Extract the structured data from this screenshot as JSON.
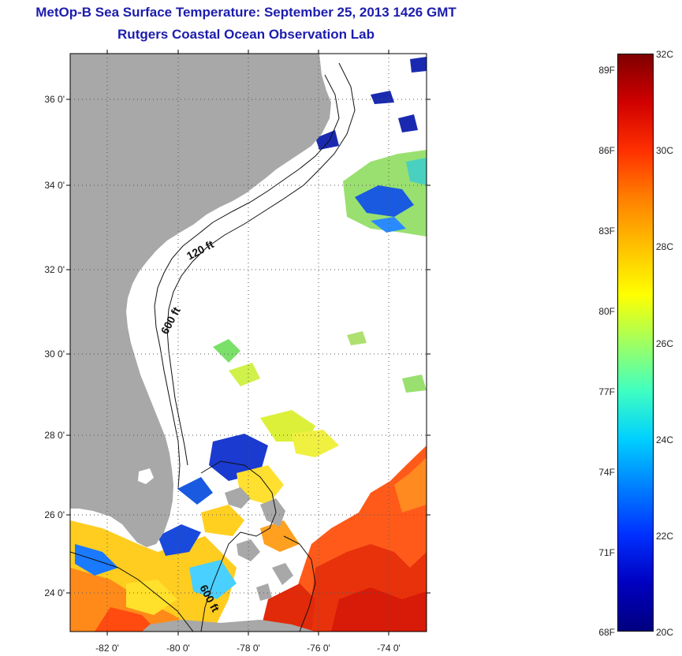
{
  "header": {
    "title": "MetOp-B Sea Surface Temperature:  September 25, 2013 1426 GMT",
    "subtitle": "Rutgers Coastal Ocean Observation Lab"
  },
  "map": {
    "latitude_labels": [
      "36 0'",
      "34 0'",
      "32 0'",
      "30 0'",
      "28 0'",
      "26 0'",
      "24 0'"
    ],
    "longitude_labels": [
      "-82 0'",
      "-80 0'",
      "-78 0'",
      "-76 0'",
      "-74 0'"
    ],
    "contour_labels": [
      "120 ft",
      "600 ft",
      "600 ft"
    ],
    "colors": {
      "land": "#a8a8a8",
      "ocean_no_data": "#ffffff",
      "gridline": "#555555"
    }
  },
  "colorbar": {
    "fahrenheit_labels": [
      "89F",
      "86F",
      "83F",
      "80F",
      "77F",
      "74F",
      "71F",
      "68F"
    ],
    "celsius_labels": [
      "32C",
      "30C",
      "28C",
      "26C",
      "24C",
      "22C",
      "20C"
    ],
    "range_c": [
      20,
      32
    ]
  }
}
